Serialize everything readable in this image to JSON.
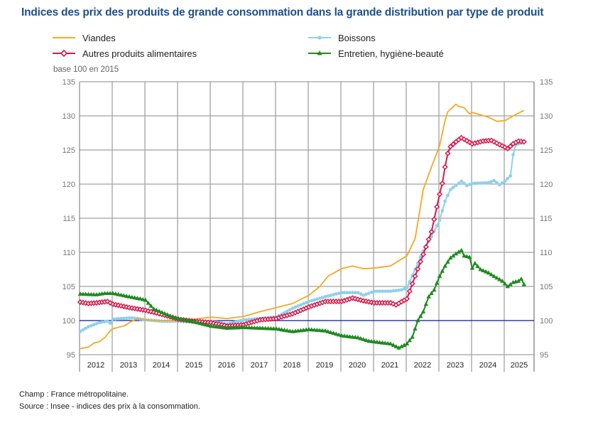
{
  "header": {
    "title": "Indices des prix des produits de grande consommation dans la grande distribution par type de produit",
    "base_note": "base 100 en 2015"
  },
  "legend": [
    {
      "label": "Viandes",
      "series": "viandes"
    },
    {
      "label": "Autres produits alimentaires",
      "series": "autres"
    },
    {
      "label": "Boissons",
      "series": "boissons"
    },
    {
      "label": "Entretien, hygiène-beauté",
      "series": "entretien"
    }
  ],
  "footer": {
    "champ": "Champ : France métropolitaine.",
    "source": "Source : Insee - indices des prix à la consommation."
  },
  "chart_data": {
    "type": "line",
    "title": "Indices des prix des produits de grande consommation dans la grande distribution par type de produit",
    "xlabel": "",
    "ylabel": "base 100 en 2015",
    "ylim": [
      95,
      135
    ],
    "yticks": [
      95,
      100,
      105,
      110,
      115,
      120,
      125,
      130,
      135
    ],
    "xlim": [
      "2012-01",
      "2025-12"
    ],
    "xticks": [
      "2012",
      "2013",
      "2014",
      "2015",
      "2016",
      "2017",
      "2018",
      "2019",
      "2020",
      "2021",
      "2022",
      "2023",
      "2024",
      "2025"
    ],
    "grid": true,
    "reference_line": 100,
    "legend_position": "top",
    "series": [
      {
        "key": "viandes",
        "name": "Viandes",
        "color": "#f7a823",
        "marker": "none",
        "points": [
          [
            "2012-01",
            95.9
          ],
          [
            "2012-04",
            96.1
          ],
          [
            "2012-06",
            96.7
          ],
          [
            "2012-08",
            96.9
          ],
          [
            "2012-10",
            97.5
          ],
          [
            "2012-12",
            98.5
          ],
          [
            "2013-01",
            98.8
          ],
          [
            "2013-05",
            99.2
          ],
          [
            "2013-08",
            99.9
          ],
          [
            "2013-10",
            100.3
          ],
          [
            "2014-01",
            100.1
          ],
          [
            "2014-07",
            100.0
          ],
          [
            "2015-01",
            100.0
          ],
          [
            "2015-07",
            100.2
          ],
          [
            "2016-01",
            100.5
          ],
          [
            "2016-07",
            100.3
          ],
          [
            "2017-01",
            100.6
          ],
          [
            "2017-07",
            101.3
          ],
          [
            "2018-01",
            101.9
          ],
          [
            "2018-07",
            102.5
          ],
          [
            "2019-01",
            103.7
          ],
          [
            "2019-05",
            105.0
          ],
          [
            "2019-08",
            106.5
          ],
          [
            "2020-01",
            107.6
          ],
          [
            "2020-05",
            108.0
          ],
          [
            "2020-09",
            107.6
          ],
          [
            "2021-01",
            107.7
          ],
          [
            "2021-07",
            108.0
          ],
          [
            "2022-01",
            109.5
          ],
          [
            "2022-04",
            112.0
          ],
          [
            "2022-07",
            119.2
          ],
          [
            "2022-10",
            122.5
          ],
          [
            "2023-01",
            125.6
          ],
          [
            "2023-03",
            129.3
          ],
          [
            "2023-04",
            130.6
          ],
          [
            "2023-07",
            131.7
          ],
          [
            "2023-08",
            131.4
          ],
          [
            "2023-10",
            131.2
          ],
          [
            "2023-12",
            130.3
          ],
          [
            "2024-01",
            130.5
          ],
          [
            "2024-07",
            129.8
          ],
          [
            "2024-10",
            129.2
          ],
          [
            "2025-01",
            129.3
          ],
          [
            "2025-05",
            130.2
          ],
          [
            "2025-08",
            130.8
          ]
        ]
      },
      {
        "key": "autres",
        "name": "Autres produits alimentaires",
        "color": "#d6194b",
        "marker": "diamond",
        "points": [
          [
            "2012-01",
            102.7
          ],
          [
            "2012-04",
            102.5
          ],
          [
            "2012-07",
            102.6
          ],
          [
            "2012-11",
            102.8
          ],
          [
            "2013-01",
            102.4
          ],
          [
            "2013-07",
            101.9
          ],
          [
            "2014-01",
            101.5
          ],
          [
            "2014-07",
            100.9
          ],
          [
            "2015-01",
            100.2
          ],
          [
            "2015-07",
            99.9
          ],
          [
            "2016-01",
            99.7
          ],
          [
            "2016-07",
            99.2
          ],
          [
            "2017-01",
            99.4
          ],
          [
            "2017-07",
            100.1
          ],
          [
            "2018-01",
            100.3
          ],
          [
            "2018-07",
            101.0
          ],
          [
            "2019-01",
            102.0
          ],
          [
            "2019-07",
            102.8
          ],
          [
            "2020-01",
            102.8
          ],
          [
            "2020-05",
            103.3
          ],
          [
            "2020-09",
            102.9
          ],
          [
            "2021-01",
            102.6
          ],
          [
            "2021-07",
            102.6
          ],
          [
            "2021-09",
            102.3
          ],
          [
            "2022-01",
            103.2
          ],
          [
            "2022-04",
            106.5
          ],
          [
            "2022-07",
            109.7
          ],
          [
            "2022-10",
            113.0
          ],
          [
            "2023-01",
            118.5
          ],
          [
            "2023-02",
            120.1
          ],
          [
            "2023-03",
            122.5
          ],
          [
            "2023-04",
            124.5
          ],
          [
            "2023-05",
            125.5
          ],
          [
            "2023-07",
            126.2
          ],
          [
            "2023-09",
            126.8
          ],
          [
            "2024-01",
            125.9
          ],
          [
            "2024-05",
            126.3
          ],
          [
            "2024-08",
            126.4
          ],
          [
            "2024-11",
            125.8
          ],
          [
            "2025-02",
            125.2
          ],
          [
            "2025-04",
            125.9
          ],
          [
            "2025-06",
            126.3
          ],
          [
            "2025-08",
            126.2
          ]
        ]
      },
      {
        "key": "boissons",
        "name": "Boissons",
        "color": "#8fd0ec",
        "marker": "dot",
        "points": [
          [
            "2012-01",
            98.4
          ],
          [
            "2012-04",
            99.1
          ],
          [
            "2012-08",
            99.7
          ],
          [
            "2012-11",
            99.9
          ],
          [
            "2012-12",
            99.6
          ],
          [
            "2013-01",
            100.2
          ],
          [
            "2013-08",
            100.4
          ],
          [
            "2014-01",
            100.1
          ],
          [
            "2014-07",
            99.9
          ],
          [
            "2015-01",
            99.9
          ],
          [
            "2015-07",
            99.8
          ],
          [
            "2016-01",
            99.9
          ],
          [
            "2016-07",
            99.5
          ],
          [
            "2017-01",
            100.1
          ],
          [
            "2017-07",
            100.3
          ],
          [
            "2018-01",
            100.5
          ],
          [
            "2018-07",
            101.8
          ],
          [
            "2019-01",
            102.8
          ],
          [
            "2019-07",
            103.5
          ],
          [
            "2020-01",
            104.1
          ],
          [
            "2020-07",
            104.1
          ],
          [
            "2020-09",
            103.7
          ],
          [
            "2021-01",
            104.3
          ],
          [
            "2021-07",
            104.3
          ],
          [
            "2021-11",
            104.5
          ],
          [
            "2022-01",
            104.8
          ],
          [
            "2022-04",
            107.5
          ],
          [
            "2022-07",
            110.2
          ],
          [
            "2022-10",
            112.3
          ],
          [
            "2023-01",
            114.7
          ],
          [
            "2023-03",
            117.5
          ],
          [
            "2023-05",
            119.2
          ],
          [
            "2023-09",
            120.4
          ],
          [
            "2023-11",
            119.8
          ],
          [
            "2024-01",
            120.1
          ],
          [
            "2024-07",
            120.2
          ],
          [
            "2024-09",
            120.5
          ],
          [
            "2024-11",
            119.9
          ],
          [
            "2025-01",
            120.4
          ],
          [
            "2025-03",
            121.2
          ],
          [
            "2025-04",
            124.3
          ],
          [
            "2025-05",
            125.8
          ],
          [
            "2025-08",
            126.1
          ]
        ]
      },
      {
        "key": "entretien",
        "name": "Entretien, hygiène-beauté",
        "color": "#1e8a1e",
        "marker": "triangle",
        "points": [
          [
            "2012-01",
            103.9
          ],
          [
            "2012-07",
            103.8
          ],
          [
            "2012-10",
            104.0
          ],
          [
            "2013-01",
            104.0
          ],
          [
            "2013-07",
            103.5
          ],
          [
            "2013-11",
            103.2
          ],
          [
            "2014-01",
            103.0
          ],
          [
            "2014-04",
            101.7
          ],
          [
            "2014-07",
            101.2
          ],
          [
            "2014-10",
            100.7
          ],
          [
            "2015-01",
            100.3
          ],
          [
            "2015-07",
            99.8
          ],
          [
            "2016-01",
            99.2
          ],
          [
            "2016-07",
            98.9
          ],
          [
            "2017-01",
            99.0
          ],
          [
            "2017-07",
            98.9
          ],
          [
            "2018-01",
            98.8
          ],
          [
            "2018-07",
            98.4
          ],
          [
            "2019-01",
            98.7
          ],
          [
            "2019-07",
            98.5
          ],
          [
            "2020-01",
            97.8
          ],
          [
            "2020-07",
            97.5
          ],
          [
            "2020-11",
            97.0
          ],
          [
            "2021-01",
            96.9
          ],
          [
            "2021-07",
            96.6
          ],
          [
            "2021-10",
            96.0
          ],
          [
            "2022-01",
            96.6
          ],
          [
            "2022-03",
            97.6
          ],
          [
            "2022-05",
            100.0
          ],
          [
            "2022-07",
            101.3
          ],
          [
            "2022-09",
            103.5
          ],
          [
            "2022-11",
            104.5
          ],
          [
            "2023-01",
            106.5
          ],
          [
            "2023-03",
            108.0
          ],
          [
            "2023-05",
            109.2
          ],
          [
            "2023-07",
            109.8
          ],
          [
            "2023-09",
            110.3
          ],
          [
            "2023-10",
            109.5
          ],
          [
            "2023-12",
            109.3
          ],
          [
            "2024-01",
            107.7
          ],
          [
            "2024-02",
            108.4
          ],
          [
            "2024-04",
            107.5
          ],
          [
            "2024-07",
            107.0
          ],
          [
            "2024-09",
            106.5
          ],
          [
            "2024-12",
            105.8
          ],
          [
            "2025-02",
            105.0
          ],
          [
            "2025-04",
            105.6
          ],
          [
            "2025-06",
            105.8
          ],
          [
            "2025-07",
            106.1
          ],
          [
            "2025-08",
            105.3
          ]
        ]
      }
    ]
  }
}
